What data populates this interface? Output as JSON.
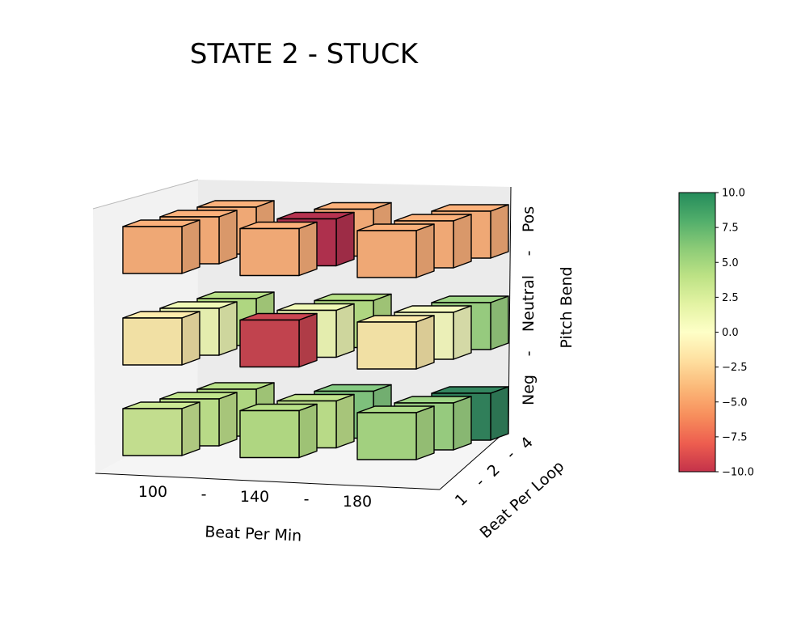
{
  "chart_data": {
    "type": "3d-bar",
    "title": "STATE 2 - STUCK",
    "xlabel": "Beat Per Min",
    "ylabel": "Beat Per Loop",
    "zlabel": "Pitch Bend",
    "x_ticks": [
      "100",
      "-",
      "140",
      "-",
      "180"
    ],
    "y_ticks": [
      "1",
      "-",
      "2",
      "-",
      "4"
    ],
    "z_ticks": [
      "Neg",
      "-",
      "Neutral",
      "-",
      "Pos"
    ],
    "x_values": [
      100,
      140,
      180
    ],
    "y_values": [
      1,
      2,
      4
    ],
    "z_levels": [
      "Neg",
      "Neutral",
      "Pos"
    ],
    "cells": [
      {
        "x": 100,
        "y": 1,
        "z": "Neg",
        "value": 3.0
      },
      {
        "x": 100,
        "y": 2,
        "z": "Neg",
        "value": 3.5
      },
      {
        "x": 100,
        "y": 4,
        "z": "Neg",
        "value": 4.0
      },
      {
        "x": 140,
        "y": 1,
        "z": "Neg",
        "value": 4.0
      },
      {
        "x": 140,
        "y": 2,
        "z": "Neg",
        "value": 3.5
      },
      {
        "x": 140,
        "y": 4,
        "z": "Neg",
        "value": 6.0
      },
      {
        "x": 180,
        "y": 1,
        "z": "Neg",
        "value": 4.5
      },
      {
        "x": 180,
        "y": 2,
        "z": "Neg",
        "value": 5.0
      },
      {
        "x": 180,
        "y": 4,
        "z": "Neg",
        "value": 10.0
      },
      {
        "x": 100,
        "y": 1,
        "z": "Neutral",
        "value": -1.5
      },
      {
        "x": 100,
        "y": 2,
        "z": "Neutral",
        "value": 1.0
      },
      {
        "x": 100,
        "y": 4,
        "z": "Neutral",
        "value": 4.0
      },
      {
        "x": 140,
        "y": 1,
        "z": "Neutral",
        "value": -9.0
      },
      {
        "x": 140,
        "y": 2,
        "z": "Neutral",
        "value": 1.0
      },
      {
        "x": 140,
        "y": 4,
        "z": "Neutral",
        "value": 4.0
      },
      {
        "x": 180,
        "y": 1,
        "z": "Neutral",
        "value": -1.5
      },
      {
        "x": 180,
        "y": 2,
        "z": "Neutral",
        "value": 0.5
      },
      {
        "x": 180,
        "y": 4,
        "z": "Neutral",
        "value": 5.0
      },
      {
        "x": 100,
        "y": 1,
        "z": "Pos",
        "value": -4.5
      },
      {
        "x": 100,
        "y": 2,
        "z": "Pos",
        "value": -4.5
      },
      {
        "x": 100,
        "y": 4,
        "z": "Pos",
        "value": -4.5
      },
      {
        "x": 140,
        "y": 1,
        "z": "Pos",
        "value": -4.5
      },
      {
        "x": 140,
        "y": 2,
        "z": "Pos",
        "value": -10.0
      },
      {
        "x": 140,
        "y": 4,
        "z": "Pos",
        "value": -4.5
      },
      {
        "x": 180,
        "y": 1,
        "z": "Pos",
        "value": -4.5
      },
      {
        "x": 180,
        "y": 2,
        "z": "Pos",
        "value": -4.5
      },
      {
        "x": 180,
        "y": 4,
        "z": "Pos",
        "value": -4.5
      }
    ],
    "colorbar": {
      "min": -10,
      "max": 10,
      "ticks": [
        "10.0",
        "7.5",
        "5.0",
        "2.5",
        "0.0",
        "−2.5",
        "−5.0",
        "−7.5",
        "−10.0"
      ],
      "tick_values": [
        10,
        7.5,
        5,
        2.5,
        0,
        -2.5,
        -5,
        -7.5,
        -10
      ],
      "colormap": "RdYlGn",
      "alpha": 0.8
    },
    "panes": {
      "background": "#f2f2f2",
      "grid": false
    }
  }
}
